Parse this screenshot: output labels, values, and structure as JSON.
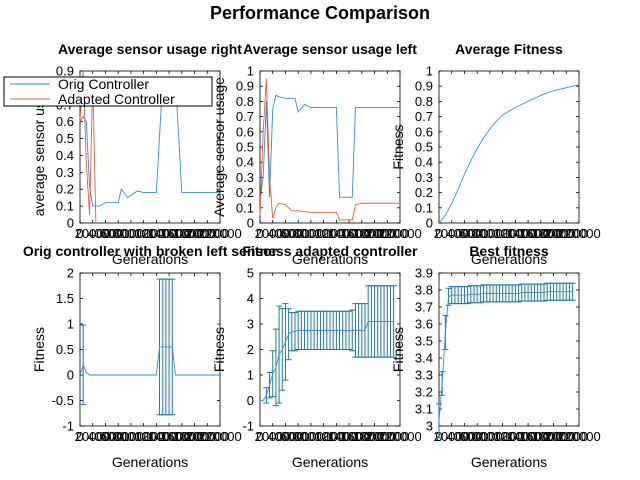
{
  "figure": {
    "title": "Performance Comparison"
  },
  "colors": {
    "orig": "#3a8fc2",
    "adapted": "#e0603c",
    "errorbar": "#1f77a4"
  },
  "legend": {
    "placement": "top-left",
    "items": [
      {
        "label": "Orig Controller",
        "color_key": "orig"
      },
      {
        "label": "Adapted Controller",
        "color_key": "adapted"
      }
    ]
  },
  "chart_data": [
    {
      "id": "sensor-right",
      "type": "line",
      "title": "Average sensor usage right",
      "xlabel": "Generations",
      "ylabel": "average sensor usage",
      "xlim": [
        0,
        220000
      ],
      "ylim": [
        0,
        0.9
      ],
      "xticks": [
        0,
        20000,
        40000,
        60000,
        80000,
        100000,
        120000,
        140000,
        160000,
        180000,
        200000,
        220000
      ],
      "yticks": [
        0,
        0.1,
        0.2,
        0.3,
        0.4,
        0.5,
        0.6,
        0.7,
        0.8,
        0.9
      ],
      "series": [
        {
          "name": "Orig Controller",
          "color_key": "orig",
          "x": [
            0,
            5000,
            10000,
            15000,
            20000,
            30000,
            40000,
            60000,
            65000,
            75000,
            90000,
            100000,
            120000,
            130000,
            140000,
            150000,
            160000,
            220000
          ],
          "y": [
            0.6,
            0.63,
            0.6,
            0.22,
            0.1,
            0.1,
            0.12,
            0.12,
            0.2,
            0.15,
            0.19,
            0.18,
            0.18,
            0.85,
            0.85,
            0.85,
            0.18,
            0.18
          ]
        },
        {
          "name": "Adapted Controller",
          "color_key": "adapted",
          "x": [
            0,
            5000,
            10000,
            15000,
            20000,
            25000
          ],
          "y": [
            0.6,
            0.9,
            0.35,
            0.05,
            0.85,
            0.0
          ]
        }
      ]
    },
    {
      "id": "sensor-left",
      "type": "line",
      "title": "Average sensor usage left",
      "xlabel": "Generations",
      "ylabel": "Average sensor usage",
      "xlim": [
        0,
        220000
      ],
      "ylim": [
        0,
        1
      ],
      "xticks": [
        0,
        20000,
        40000,
        60000,
        80000,
        100000,
        120000,
        140000,
        160000,
        180000,
        200000,
        220000
      ],
      "yticks": [
        0,
        0.1,
        0.2,
        0.3,
        0.4,
        0.5,
        0.6,
        0.7,
        0.8,
        0.9,
        1
      ],
      "series": [
        {
          "name": "Orig Controller",
          "color_key": "orig",
          "x": [
            0,
            5000,
            10000,
            15000,
            20000,
            25000,
            30000,
            40000,
            55000,
            60000,
            70000,
            80000,
            90000,
            120000,
            125000,
            135000,
            145000,
            150000,
            160000,
            220000
          ],
          "y": [
            0.15,
            0.3,
            0.8,
            0.17,
            0.75,
            0.84,
            0.83,
            0.82,
            0.82,
            0.73,
            0.78,
            0.76,
            0.76,
            0.76,
            0.17,
            0.17,
            0.17,
            0.76,
            0.76,
            0.76
          ]
        },
        {
          "name": "Adapted Controller",
          "color_key": "adapted",
          "x": [
            0,
            5000,
            10000,
            15000,
            20000,
            25000,
            30000,
            40000,
            50000,
            60000,
            80000,
            120000,
            125000,
            145000,
            150000,
            160000,
            220000
          ],
          "y": [
            0.05,
            0.6,
            0.95,
            0.3,
            0.03,
            0.1,
            0.13,
            0.12,
            0.08,
            0.08,
            0.07,
            0.07,
            0.02,
            0.02,
            0.12,
            0.13,
            0.13
          ]
        }
      ]
    },
    {
      "id": "avg-fitness",
      "type": "line",
      "title": "Average Fitness",
      "xlabel": "Generations",
      "ylabel": "Fitness",
      "xlim": [
        0,
        220000
      ],
      "ylim": [
        0,
        1
      ],
      "xticks": [
        0,
        20000,
        40000,
        60000,
        80000,
        100000,
        120000,
        140000,
        160000,
        180000,
        200000,
        220000
      ],
      "yticks": [
        0,
        0.1,
        0.2,
        0.3,
        0.4,
        0.5,
        0.6,
        0.7,
        0.8,
        0.9,
        1
      ],
      "series": [
        {
          "name": "",
          "color_key": "orig",
          "x": [
            0,
            10000,
            20000,
            30000,
            40000,
            50000,
            60000,
            70000,
            80000,
            90000,
            100000,
            120000,
            140000,
            160000,
            180000,
            200000,
            220000
          ],
          "y": [
            0.0,
            0.05,
            0.13,
            0.22,
            0.32,
            0.41,
            0.49,
            0.56,
            0.62,
            0.67,
            0.71,
            0.76,
            0.8,
            0.84,
            0.87,
            0.89,
            0.91
          ]
        }
      ]
    },
    {
      "id": "broken-left",
      "type": "line",
      "title": "Orig controller with broken left sensor",
      "xlabel": "Generations",
      "ylabel": "Fitness",
      "xlim": [
        0,
        220000
      ],
      "ylim": [
        -1,
        2
      ],
      "xticks": [
        0,
        20000,
        40000,
        60000,
        80000,
        100000,
        120000,
        140000,
        160000,
        180000,
        200000,
        220000
      ],
      "yticks": [
        -1,
        -0.5,
        0,
        0.5,
        1,
        1.5,
        2
      ],
      "series": [
        {
          "name": "",
          "color_key": "orig",
          "x": [
            0,
            5000,
            10000,
            15000,
            120000,
            125000,
            130000,
            135000,
            140000,
            145000,
            150000,
            220000
          ],
          "y": [
            0,
            0.2,
            0.05,
            0,
            0,
            0.55,
            0.55,
            0.55,
            0.55,
            0.55,
            0,
            0
          ],
          "err": [
            0,
            0.78,
            0,
            0,
            0,
            1.33,
            1.33,
            1.33,
            1.33,
            1.33,
            0,
            0
          ]
        }
      ]
    },
    {
      "id": "fitness-adapted",
      "type": "line",
      "title": "Fitness adapted controller",
      "xlabel": "Generations",
      "ylabel": "Fitness",
      "xlim": [
        0,
        220000
      ],
      "ylim": [
        -1,
        5
      ],
      "xticks": [
        0,
        20000,
        40000,
        60000,
        80000,
        100000,
        120000,
        140000,
        160000,
        180000,
        200000,
        220000
      ],
      "yticks": [
        -1,
        0,
        1,
        2,
        3,
        4,
        5
      ],
      "series": [
        {
          "name": "",
          "color_key": "orig",
          "x": [
            0,
            5000,
            10000,
            15000,
            20000,
            25000,
            30000,
            35000,
            40000,
            45000,
            50000,
            55000,
            60000,
            65000,
            70000,
            75000,
            80000,
            85000,
            90000,
            95000,
            100000,
            105000,
            110000,
            115000,
            120000,
            125000,
            130000,
            135000,
            140000,
            145000,
            150000,
            155000,
            160000,
            165000,
            170000,
            175000,
            180000,
            185000,
            190000,
            195000,
            200000,
            205000,
            210000
          ],
          "y": [
            0,
            0,
            0.2,
            0.6,
            1.05,
            1.3,
            1.8,
            2.0,
            2.3,
            2.6,
            2.7,
            2.7,
            2.75,
            2.75,
            2.75,
            2.75,
            2.75,
            2.75,
            2.75,
            2.75,
            2.75,
            2.75,
            2.75,
            2.75,
            2.75,
            2.75,
            2.75,
            2.75,
            2.75,
            2.75,
            2.75,
            2.75,
            2.75,
            2.75,
            3.1,
            3.1,
            3.1,
            3.1,
            3.1,
            3.1,
            3.1,
            3.1,
            3.1
          ],
          "err": [
            0,
            0,
            0.3,
            0.5,
            0.9,
            1.5,
            1.9,
            1.6,
            1.5,
            1.0,
            0.75,
            0.75,
            0.75,
            0.75,
            0.75,
            0.75,
            0.75,
            0.75,
            0.75,
            0.75,
            0.75,
            0.75,
            0.75,
            0.75,
            0.75,
            0.75,
            0.75,
            0.75,
            0.75,
            0.8,
            1.05,
            1.05,
            1.05,
            1.05,
            1.4,
            1.4,
            1.4,
            1.4,
            1.4,
            1.4,
            1.4,
            1.4,
            1.4
          ]
        }
      ]
    },
    {
      "id": "best-fitness",
      "type": "line",
      "title": "Best fitness",
      "xlabel": "Generations",
      "ylabel": "Fitness",
      "xlim": [
        0,
        220000
      ],
      "ylim": [
        3,
        3.9
      ],
      "xticks": [
        0,
        20000,
        40000,
        60000,
        80000,
        100000,
        120000,
        140000,
        160000,
        180000,
        200000,
        220000
      ],
      "yticks": [
        3,
        3.1,
        3.2,
        3.3,
        3.4,
        3.5,
        3.6,
        3.7,
        3.8,
        3.9
      ],
      "series": [
        {
          "name": "",
          "color_key": "orig",
          "x": [
            0,
            5000,
            10000,
            15000,
            20000,
            25000,
            30000,
            35000,
            40000,
            45000,
            50000,
            55000,
            60000,
            65000,
            70000,
            75000,
            80000,
            85000,
            90000,
            95000,
            100000,
            105000,
            110000,
            115000,
            120000,
            125000,
            130000,
            135000,
            140000,
            145000,
            150000,
            155000,
            160000,
            165000,
            170000,
            175000,
            180000,
            185000,
            190000,
            195000,
            200000,
            205000,
            210000
          ],
          "y": [
            3.03,
            3.25,
            3.55,
            3.76,
            3.77,
            3.77,
            3.77,
            3.77,
            3.77,
            3.77,
            3.775,
            3.775,
            3.775,
            3.775,
            3.78,
            3.78,
            3.78,
            3.78,
            3.78,
            3.78,
            3.78,
            3.78,
            3.78,
            3.78,
            3.78,
            3.78,
            3.785,
            3.785,
            3.785,
            3.785,
            3.785,
            3.785,
            3.785,
            3.785,
            3.79,
            3.79,
            3.79,
            3.79,
            3.79,
            3.79,
            3.79,
            3.79,
            3.79
          ],
          "err": [
            0.1,
            0.07,
            0.1,
            0.05,
            0.05,
            0.05,
            0.05,
            0.05,
            0.05,
            0.05,
            0.05,
            0.05,
            0.05,
            0.05,
            0.05,
            0.05,
            0.05,
            0.05,
            0.05,
            0.05,
            0.05,
            0.05,
            0.05,
            0.05,
            0.05,
            0.05,
            0.05,
            0.05,
            0.05,
            0.05,
            0.05,
            0.05,
            0.05,
            0.05,
            0.05,
            0.05,
            0.05,
            0.05,
            0.05,
            0.05,
            0.05,
            0.05,
            0.05
          ]
        }
      ]
    }
  ]
}
